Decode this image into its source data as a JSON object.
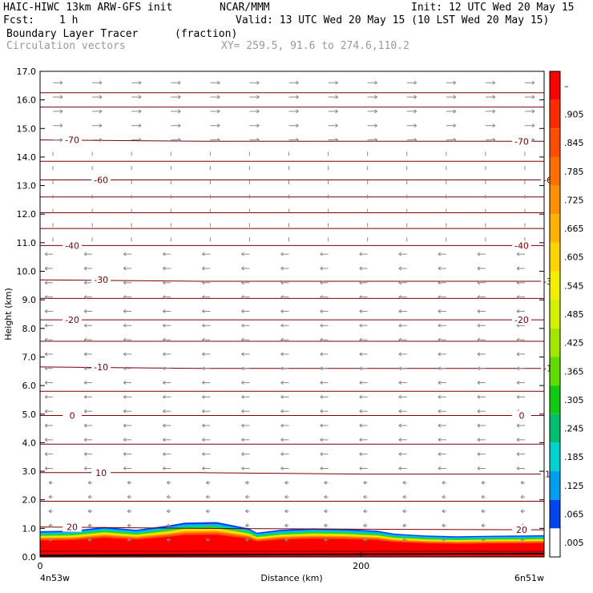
{
  "header": {
    "model_line": "HAIC-HIWC 13km ARW-GFS init",
    "org": "NCAR/MMM",
    "init": "Init: 12 UTC Wed 20 May 15",
    "fcst_label": "Fcst:",
    "fcst_value": "1 h",
    "valid": "Valid: 13 UTC Wed 20 May 15 (10 LST Wed 20 May 15)",
    "field_name": "Boundary Layer Tracer",
    "field_units": "(fraction)",
    "vector_name": "Circulation vectors",
    "xy_text": "XY= 259.5, 91.6 to 274.6,110.2"
  },
  "axes": {
    "ylabel": "Height (km)",
    "xlabel": "Distance (km)",
    "left_location": "4n53w",
    "right_location": "6n51w",
    "x_ticks": [
      "0",
      "200"
    ]
  },
  "colorbar": {
    "labels": [
      "–",
      ".905",
      ".845",
      ".785",
      ".725",
      ".665",
      ".605",
      ".545",
      ".485",
      ".425",
      ".365",
      ".305",
      ".245",
      ".185",
      ".125",
      ".065",
      ".005"
    ],
    "colors": [
      "#ff0000",
      "#ff2a00",
      "#ff4d00",
      "#ff6f00",
      "#ff9000",
      "#ffb300",
      "#ffd400",
      "#f2f000",
      "#d2f000",
      "#a0e800",
      "#60dc00",
      "#10cc10",
      "#00c070",
      "#00d2d2",
      "#00a0f0",
      "#0046f0",
      "#ffffff"
    ]
  },
  "chart_data": {
    "type": "contour",
    "x_range_km": [
      0,
      314
    ],
    "ylim": [
      0,
      17
    ],
    "y_ticks": [
      0.0,
      1.0,
      2.0,
      3.0,
      4.0,
      5.0,
      6.0,
      7.0,
      8.0,
      9.0,
      10.0,
      11.0,
      12.0,
      13.0,
      14.0,
      15.0,
      16.0,
      17.0
    ],
    "y_tick_labels": [
      "0.0",
      "1.0",
      "2.0",
      "3.0",
      "4.0",
      "5.0",
      "6.0",
      "7.0",
      "8.0",
      "9.0",
      "10.0",
      "11.0",
      "12.0",
      "13.0",
      "14.0",
      "15.0",
      "16.0",
      "17.0"
    ],
    "temperature_contours_C": [
      {
        "label": "20",
        "height_km": [
          1.05,
          1.0,
          0.97,
          0.95
        ]
      },
      {
        "label": "10",
        "height_km": [
          2.95,
          2.95,
          2.9,
          2.9
        ]
      },
      {
        "label": "0",
        "height_km": [
          4.95,
          4.95,
          4.95,
          4.95
        ]
      },
      {
        "label": "-10",
        "height_km": [
          6.65,
          6.6,
          6.6,
          6.6
        ]
      },
      {
        "label": "-20",
        "height_km": [
          8.3,
          8.3,
          8.3,
          8.3
        ]
      },
      {
        "label": "-30",
        "height_km": [
          9.7,
          9.65,
          9.65,
          9.65
        ]
      },
      {
        "label": "-40",
        "height_km": [
          10.9,
          10.9,
          10.9,
          10.9
        ]
      },
      {
        "label": "-60",
        "height_km": [
          13.2,
          13.2,
          13.2,
          13.2
        ]
      },
      {
        "label": "-70",
        "height_km": [
          14.6,
          14.55,
          14.55,
          14.55
        ]
      }
    ],
    "unlabeled_contour_heights_km": [
      0.2,
      1.95,
      3.95,
      5.8,
      7.55,
      9.05,
      11.5,
      12.05,
      12.6,
      13.85,
      15.75,
      16.25
    ],
    "contour_x_km": [
      0,
      100,
      200,
      314
    ],
    "tracer_top_km": {
      "x": [
        0,
        20,
        40,
        60,
        80,
        90,
        110,
        130,
        135,
        150,
        170,
        190,
        210,
        220,
        240,
        260,
        280,
        300,
        314
      ],
      "top": [
        0.9,
        0.92,
        1.05,
        0.95,
        1.1,
        1.2,
        1.22,
        1.0,
        0.85,
        0.95,
        1.0,
        0.98,
        0.92,
        0.82,
        0.75,
        0.72,
        0.74,
        0.75,
        0.76
      ]
    },
    "wind_vectors": "rightward above ~14.5 km, leftward between ~3 and ~11 km"
  }
}
